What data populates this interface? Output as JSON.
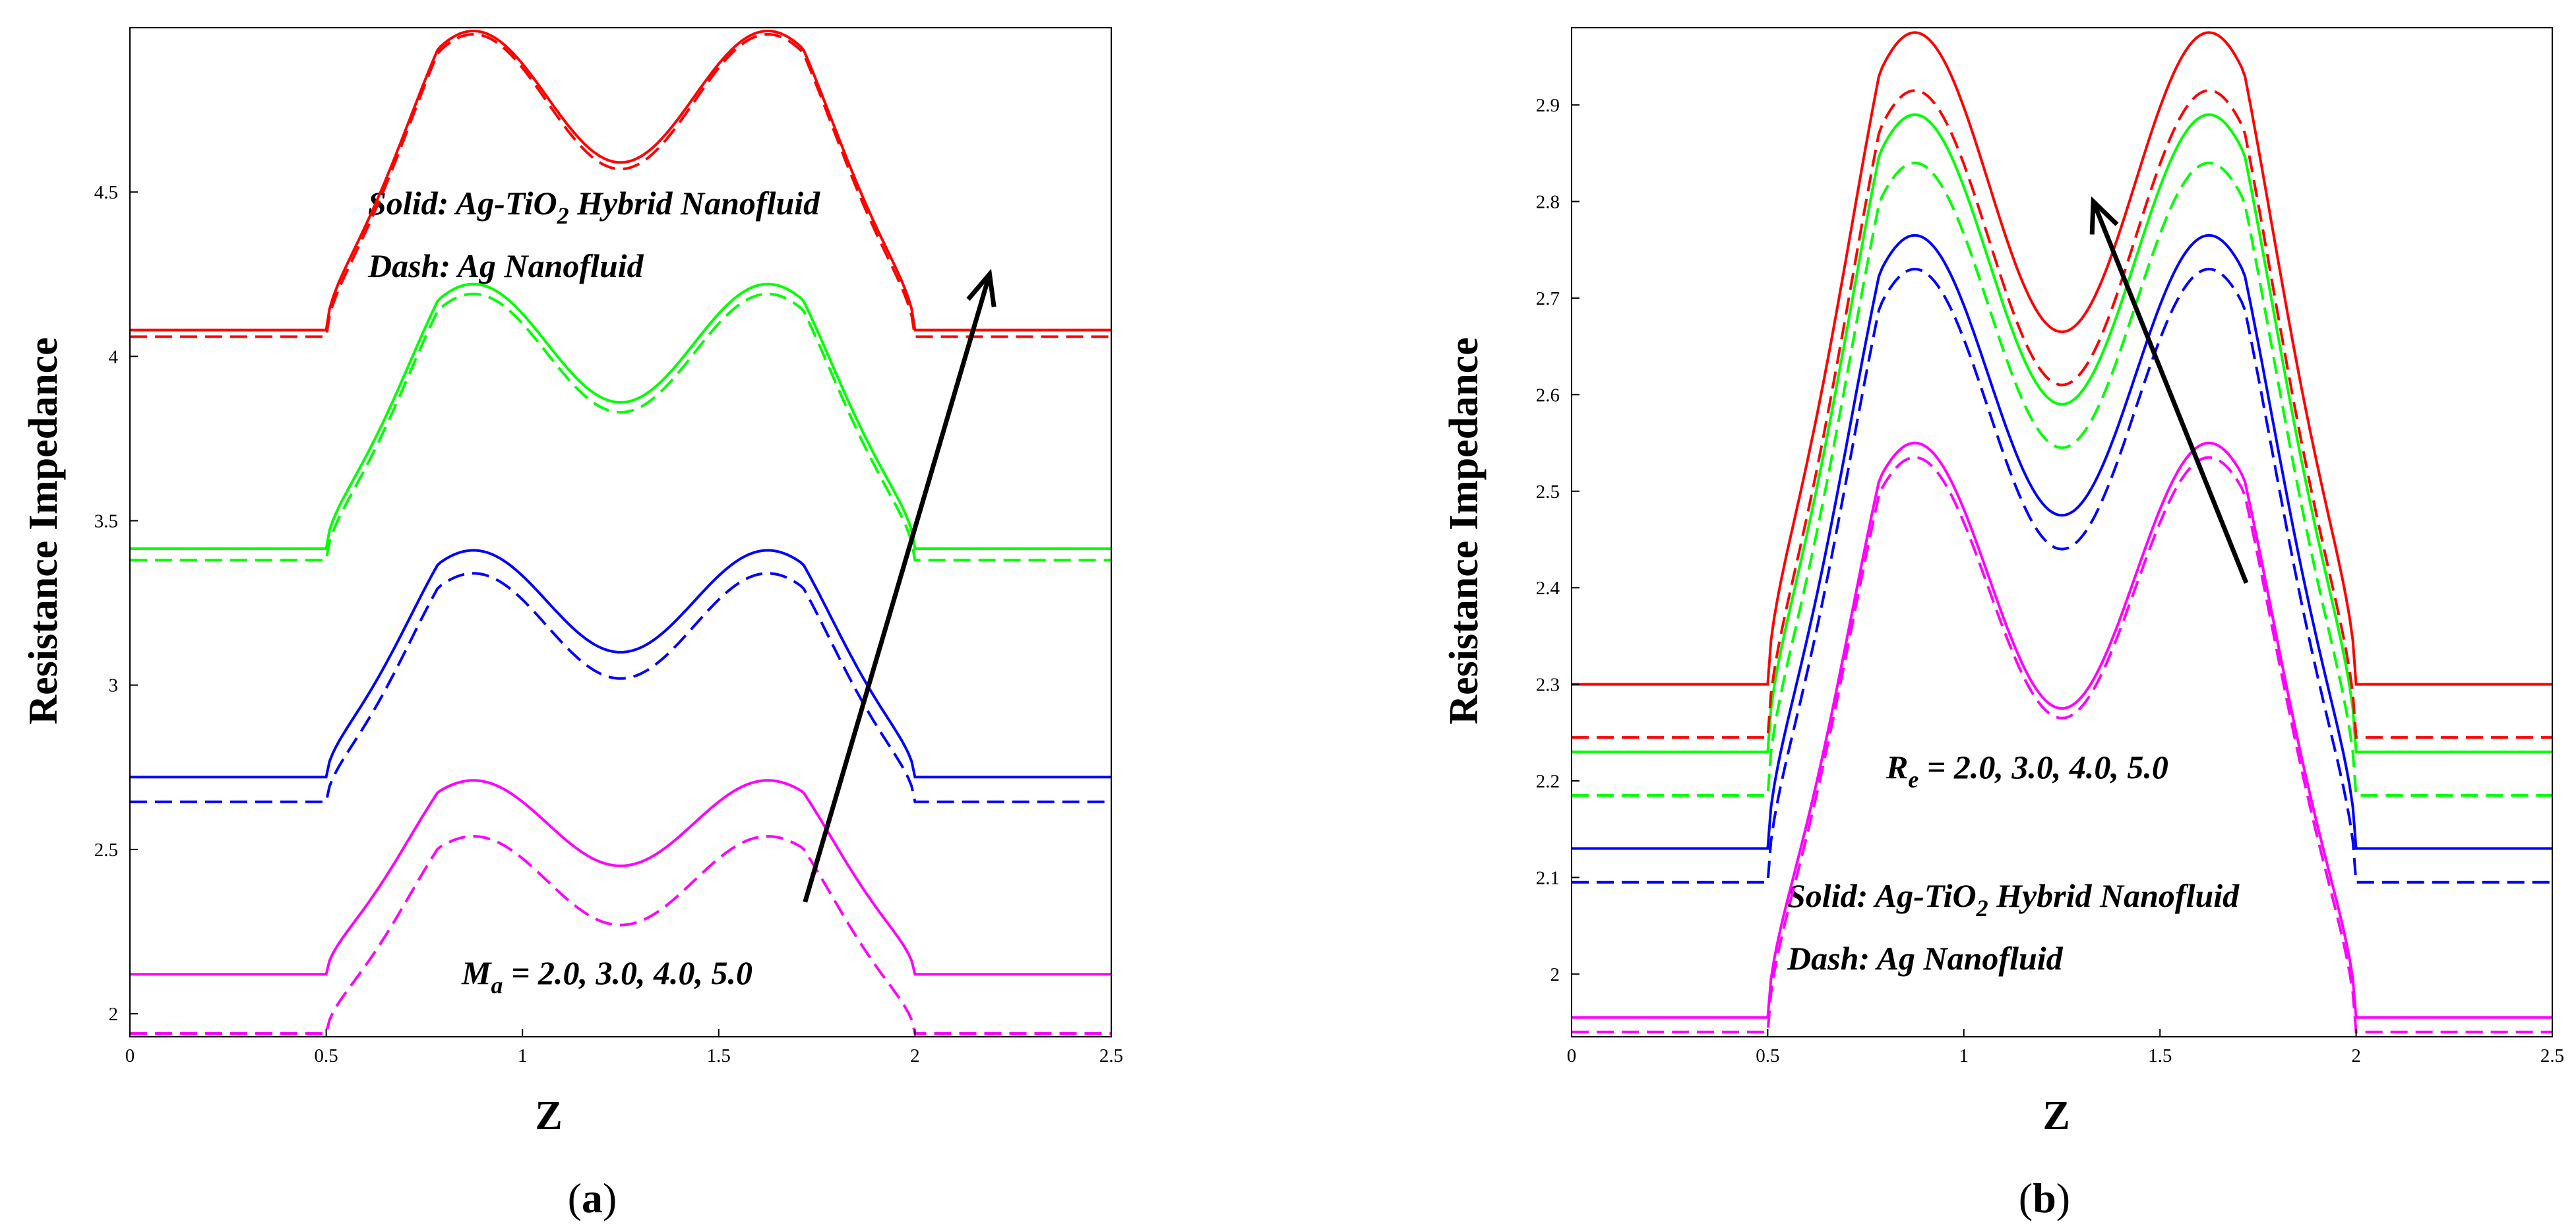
{
  "colors": {
    "magenta": "#ff00ff",
    "blue": "#0000ff",
    "green": "#00ff00",
    "red": "#ff0000",
    "arrow": "#000000"
  },
  "chart_data": [
    {
      "type": "line",
      "panel_label": "a",
      "xlabel": "Z",
      "ylabel": "Resistance Impedance",
      "xlim": [
        0,
        2.5
      ],
      "ylim": [
        1.93,
        5.0
      ],
      "xticks": [
        "0",
        "0.5",
        "1",
        "1.5",
        "2",
        "2.5"
      ],
      "yticks": [
        "2",
        "2.5",
        "3",
        "3.5",
        "4",
        "4.5"
      ],
      "annotations": {
        "solid_prefix": "Solid: Ag-TiO",
        "solid_sub": "2",
        "solid_suffix": " Hybrid Nanofluid",
        "dash": "Dash: Ag Nanofluid",
        "param_sym": "M",
        "param_sub": "a",
        "param_values": " = 2.0, 3.0, 4.0, 5.0"
      },
      "x_breakpoints": [
        0,
        0.5,
        2.0,
        2.5
      ],
      "series": [
        {
          "name": "M_a = 2.0, solid",
          "color": "magenta",
          "dash": false,
          "flat": 2.12,
          "peak": 2.71,
          "trough": 2.45
        },
        {
          "name": "M_a = 2.0, dash",
          "color": "magenta",
          "dash": true,
          "flat": 1.94,
          "peak": 2.54,
          "trough": 2.27
        },
        {
          "name": "M_a = 3.0, solid",
          "color": "blue",
          "dash": false,
          "flat": 2.72,
          "peak": 3.41,
          "trough": 3.1
        },
        {
          "name": "M_a = 3.0, dash",
          "color": "blue",
          "dash": true,
          "flat": 2.645,
          "peak": 3.34,
          "trough": 3.02
        },
        {
          "name": "M_a = 4.0, solid",
          "color": "green",
          "dash": false,
          "flat": 3.415,
          "peak": 4.22,
          "trough": 3.86
        },
        {
          "name": "M_a = 4.0, dash",
          "color": "green",
          "dash": true,
          "flat": 3.38,
          "peak": 4.19,
          "trough": 3.83
        },
        {
          "name": "M_a = 5.0, solid",
          "color": "red",
          "dash": false,
          "flat": 4.08,
          "peak": 4.99,
          "trough": 4.59
        },
        {
          "name": "M_a = 5.0, dash",
          "color": "red",
          "dash": true,
          "flat": 4.06,
          "peak": 4.98,
          "trough": 4.57
        }
      ],
      "arrow": {
        "from": [
          1.72,
          2.34
        ],
        "to": [
          2.19,
          4.25
        ]
      }
    },
    {
      "type": "line",
      "panel_label": "b",
      "xlabel": "Z",
      "ylabel": "Resistance Impedance",
      "xlim": [
        0,
        2.5
      ],
      "ylim": [
        1.935,
        2.98
      ],
      "xticks": [
        "0",
        "0.5",
        "1",
        "1.5",
        "2",
        "2.5"
      ],
      "yticks": [
        "2",
        "2.1",
        "2.2",
        "2.3",
        "2.4",
        "2.5",
        "2.6",
        "2.7",
        "2.8",
        "2.9"
      ],
      "annotations": {
        "param_sym": "R",
        "param_sub": "e",
        "param_values": " = 2.0, 3.0, 4.0, 5.0",
        "solid_prefix": "Solid: Ag-TiO",
        "solid_sub": "2",
        "solid_suffix": " Hybrid Nanofluid",
        "dash": "Dash: Ag Nanofluid"
      },
      "x_breakpoints": [
        0,
        0.5,
        2.0,
        2.5
      ],
      "series": [
        {
          "name": "R_e = 2.0, solid",
          "color": "magenta",
          "dash": false,
          "flat": 1.955,
          "peak": 2.55,
          "trough": 2.275
        },
        {
          "name": "R_e = 2.0, dash",
          "color": "magenta",
          "dash": true,
          "flat": 1.94,
          "peak": 2.535,
          "trough": 2.265
        },
        {
          "name": "R_e = 3.0, solid",
          "color": "blue",
          "dash": false,
          "flat": 2.13,
          "peak": 2.765,
          "trough": 2.475
        },
        {
          "name": "R_e = 3.0, dash",
          "color": "blue",
          "dash": true,
          "flat": 2.095,
          "peak": 2.73,
          "trough": 2.44
        },
        {
          "name": "R_e = 4.0, solid",
          "color": "green",
          "dash": false,
          "flat": 2.23,
          "peak": 2.89,
          "trough": 2.59
        },
        {
          "name": "R_e = 4.0, dash",
          "color": "green",
          "dash": true,
          "flat": 2.185,
          "peak": 2.84,
          "trough": 2.545
        },
        {
          "name": "R_e = 5.0, solid",
          "color": "red",
          "dash": false,
          "flat": 2.3,
          "peak": 2.975,
          "trough": 2.665
        },
        {
          "name": "R_e = 5.0, dash",
          "color": "red",
          "dash": true,
          "flat": 2.245,
          "peak": 2.915,
          "trough": 2.61
        }
      ],
      "arrow": {
        "from": [
          1.72,
          2.405
        ],
        "to": [
          1.33,
          2.8
        ]
      }
    }
  ]
}
